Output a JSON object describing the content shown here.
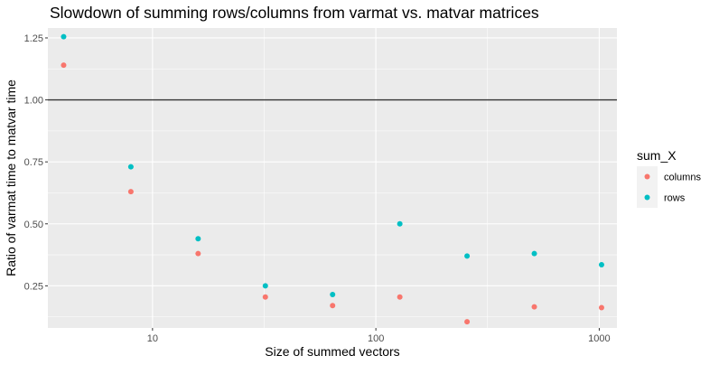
{
  "chart_data": {
    "type": "scatter",
    "title": "Slowdown of summing rows/columns from varmat vs. matvar matrices",
    "xlabel": "Size of summed vectors",
    "ylabel": "Ratio of varmat time to matvar time",
    "x_scale": "log10",
    "xlim": [
      3.4,
      1200
    ],
    "ylim": [
      0.08,
      1.29
    ],
    "x_ticks": [
      10,
      100,
      1000
    ],
    "x_tick_labels": [
      "10",
      "100",
      "1000"
    ],
    "y_ticks": [
      0.25,
      0.5,
      0.75,
      1.0,
      1.25
    ],
    "y_tick_labels": [
      "0.25",
      "0.50",
      "0.75",
      "1.00",
      "1.25"
    ],
    "reference_line": {
      "y": 1.0,
      "color": "#333333"
    },
    "legend": {
      "title": "sum_X",
      "position": "right"
    },
    "series": [
      {
        "name": "columns",
        "color": "#F8766D",
        "x": [
          4,
          8,
          16,
          32,
          64,
          128,
          256,
          512,
          1024
        ],
        "y": [
          1.14,
          0.63,
          0.38,
          0.205,
          0.17,
          0.205,
          0.105,
          0.165,
          0.162
        ]
      },
      {
        "name": "rows",
        "color": "#00BFC4",
        "x": [
          4,
          8,
          16,
          32,
          64,
          128,
          256,
          512,
          1024
        ],
        "y": [
          1.255,
          0.73,
          0.44,
          0.25,
          0.215,
          0.5,
          0.37,
          0.38,
          0.335
        ]
      }
    ]
  }
}
